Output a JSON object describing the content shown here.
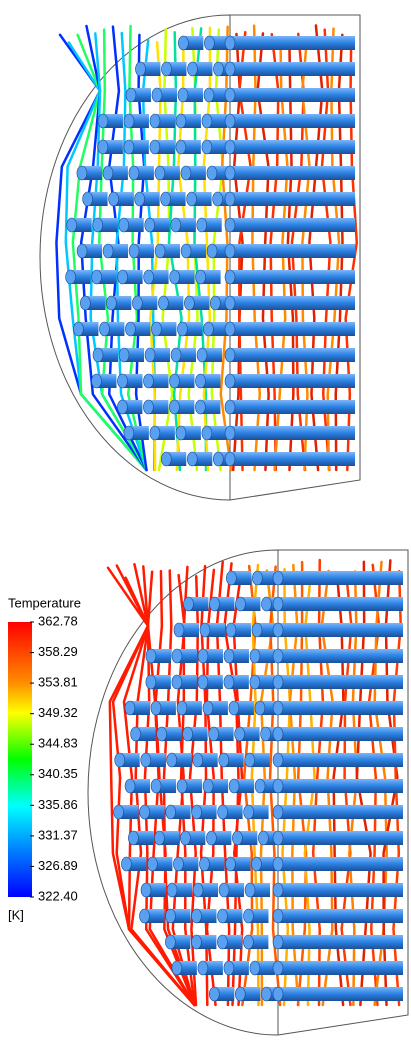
{
  "legend": {
    "title": "Temperature",
    "ticks": [
      362.78,
      358.29,
      353.81,
      349.32,
      344.83,
      340.35,
      335.86,
      331.37,
      326.89,
      {
        "value": 322.4,
        "label": "322.40"
      }
    ],
    "unit": "[K]"
  }
}
